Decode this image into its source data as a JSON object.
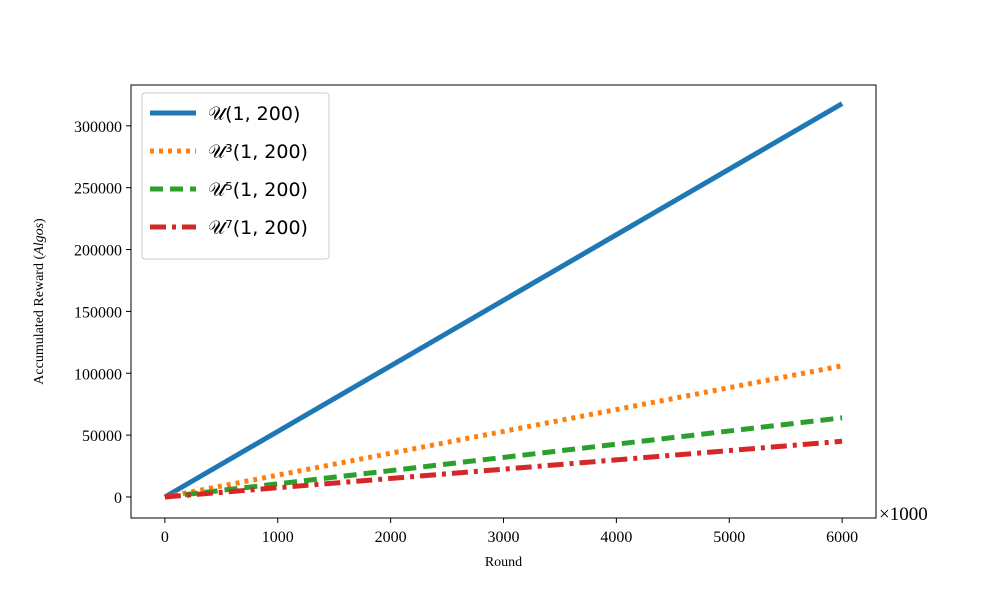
{
  "chart_data": {
    "type": "line",
    "xlabel": "Round",
    "ylabel": "Accumulated Reward (Algos)",
    "ylabel_plain": "Accumulated Reward (",
    "ylabel_italic": "Algos",
    "ylabel_close": ")",
    "x_multiplier": "×1000",
    "xlim": [
      -300,
      6300
    ],
    "ylim": [
      -17000,
      333000
    ],
    "x_ticks": [
      0,
      1000,
      2000,
      3000,
      4000,
      5000,
      6000
    ],
    "y_ticks": [
      0,
      50000,
      100000,
      150000,
      200000,
      250000,
      300000
    ],
    "x_tick_labels": [
      "0",
      "1000",
      "2000",
      "3000",
      "4000",
      "5000",
      "6000"
    ],
    "y_tick_labels": [
      "0",
      "50000",
      "100000",
      "150000",
      "200000",
      "250000",
      "300000"
    ],
    "grid": false,
    "legend_position": "top-left",
    "series": [
      {
        "name": "𝒰(1, 200)",
        "style": "solid",
        "color": "#1f77b4",
        "x": [
          0,
          6000
        ],
        "y": [
          0,
          318000
        ]
      },
      {
        "name": "𝒰³(1, 200)",
        "style": "dotted",
        "color": "#ff7f0e",
        "x": [
          0,
          6000
        ],
        "y": [
          0,
          106000
        ]
      },
      {
        "name": "𝒰⁵(1, 200)",
        "style": "dashed",
        "color": "#2ca02c",
        "x": [
          0,
          6000
        ],
        "y": [
          0,
          64000
        ]
      },
      {
        "name": "𝒰⁷(1, 200)",
        "style": "dashdot",
        "color": "#d62728",
        "x": [
          0,
          6000
        ],
        "y": [
          0,
          45000
        ]
      }
    ]
  }
}
